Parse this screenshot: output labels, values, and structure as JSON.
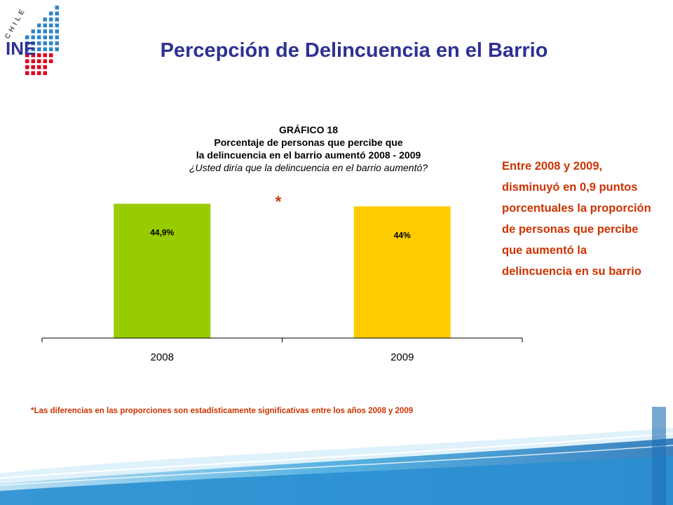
{
  "header": {
    "title": "Percepción de Delincuencia en el Barrio",
    "logo_text": "INE",
    "logo_country": "CHILE"
  },
  "chart_data": {
    "type": "bar",
    "caption_lines": [
      "GRÁFICO 18",
      "Porcentaje de personas que percibe que",
      "la delincuencia en el barrio aumentó 2008 - 2009",
      "¿Usted diría que la delincuencia en el barrio aumentó?"
    ],
    "categories": [
      "2008",
      "2009"
    ],
    "values": [
      44.9,
      44
    ],
    "data_labels": [
      "44,9%",
      "44%"
    ],
    "colors": [
      "#99cc00",
      "#ffcc00"
    ],
    "significance_marker": "*",
    "ylim": [
      0,
      60
    ],
    "grid": false,
    "legend": "none"
  },
  "side_note": "Entre 2008 y 2009, disminuyó en 0,9 puntos porcentuales la proporción de personas que percibe que aumentó la delincuencia en su barrio",
  "footnote": "*Las diferencias en las proporciones son estadísticamente  significativas entre los años 2008 y 2009"
}
